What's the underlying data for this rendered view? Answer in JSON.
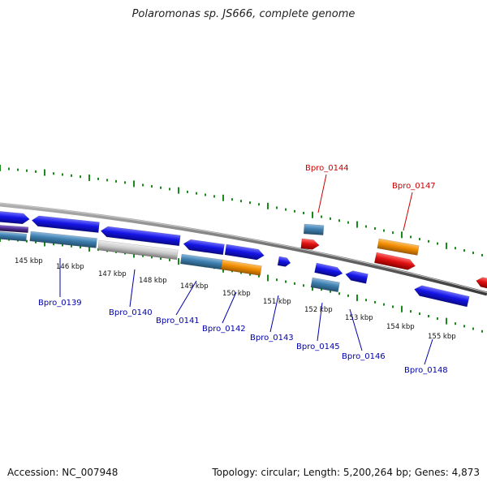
{
  "title": "Polaromonas sp. JS666, complete genome",
  "footer": {
    "accession": "Accession: NC_007948",
    "summary": "Topology: circular; Length: 5,200,264 bp; Genes: 4,873"
  },
  "colors": {
    "ticks": "#1a8a1a",
    "backbone": "#7a7a7a",
    "gene_blue": "#1515e6",
    "gene_red": "#e01010",
    "gene_orange": "#f08c00",
    "gene_steel": "#3e7fb0",
    "gene_grey": "#bdbdbd",
    "gene_purple": "#4a2a8a",
    "label_blue": "#0000aa",
    "label_red": "#cc0000",
    "kbp_text": "#111111"
  },
  "kbp_labels": [
    "145 kbp",
    "146 kbp",
    "147 kbp",
    "148 kbp",
    "149 kbp",
    "150 kbp",
    "151 kbp",
    "152 kbp",
    "153 kbp",
    "154 kbp",
    "155 kbp"
  ],
  "gene_labels": [
    {
      "text": "Bpro_0139",
      "color": "blue"
    },
    {
      "text": "Bpro_0140",
      "color": "blue"
    },
    {
      "text": "Bpro_0141",
      "color": "blue"
    },
    {
      "text": "Bpro_0142",
      "color": "blue"
    },
    {
      "text": "Bpro_0143",
      "color": "blue"
    },
    {
      "text": "Bpro_0144",
      "color": "red"
    },
    {
      "text": "Bpro_0145",
      "color": "blue"
    },
    {
      "text": "Bpro_0146",
      "color": "blue"
    },
    {
      "text": "Bpro_0147",
      "color": "red"
    },
    {
      "text": "Bpro_0148",
      "color": "blue"
    }
  ]
}
